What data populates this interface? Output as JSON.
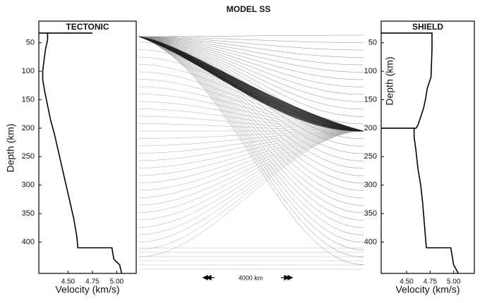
{
  "figure": {
    "title": "MODEL SS",
    "scale_label": "4000 km"
  },
  "chart_data": [
    {
      "type": "line",
      "title": "TECTONIC",
      "xlabel": "Velocity (km/s)",
      "ylabel": "Depth (km)",
      "color": "#000000",
      "x": [
        4.2,
        4.75,
        null,
        4.29,
        4.29,
        4.27,
        4.25,
        4.24,
        4.24,
        4.26,
        4.29,
        4.32,
        4.36,
        4.4,
        4.44,
        4.48,
        4.52,
        4.56,
        4.59,
        4.6,
        4.95,
        4.97,
        5.03,
        5.05
      ],
      "values": [
        33,
        33,
        null,
        33,
        45,
        60,
        85,
        100,
        115,
        135,
        160,
        185,
        210,
        240,
        270,
        300,
        330,
        360,
        390,
        410,
        410,
        430,
        440,
        455
      ],
      "xlim": [
        4.2,
        5.2
      ],
      "ylim": [
        12,
        455
      ],
      "xticks": [
        {
          "value": 4.5,
          "label": "4.50"
        },
        4.75,
        {
          "value": 5,
          "label": "5.00"
        }
      ],
      "yticks": [
        50,
        100,
        150,
        200,
        250,
        300,
        350,
        400
      ]
    },
    {
      "type": "line",
      "title": "SHIELD",
      "xlabel": "Velocity (km/s)",
      "ylabel": "Depth (km)",
      "color": "#000000",
      "x": [
        4.23,
        4.77,
        4.77,
        4.76,
        4.72,
        4.7,
        4.68,
        4.65,
        4.62,
        4.6,
        4.23,
        null,
        4.58,
        4.58,
        4.6,
        4.62,
        4.65,
        4.67,
        4.69,
        4.71,
        4.97,
        5.0,
        5.05
      ],
      "values": [
        33,
        33,
        60,
        110,
        130,
        150,
        165,
        180,
        195,
        200,
        200,
        null,
        200,
        215,
        240,
        270,
        300,
        330,
        370,
        410,
        410,
        440,
        455
      ],
      "xlim": [
        4.23,
        5.22
      ],
      "ylim": [
        12,
        455
      ],
      "xticks": [
        {
          "value": 4.5,
          "label": "4.50"
        },
        4.75,
        {
          "value": 5,
          "label": "5.00"
        }
      ],
      "yticks": [
        50,
        100,
        150,
        200,
        250,
        300,
        350,
        400
      ]
    }
  ]
}
